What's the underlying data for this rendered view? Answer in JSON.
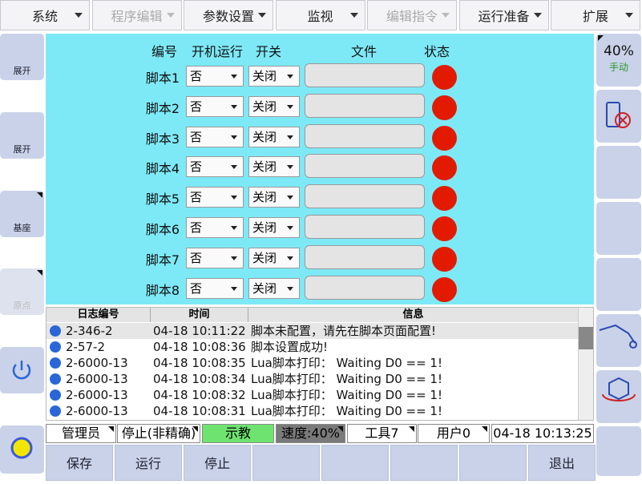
{
  "menu": [
    {
      "label": "系统"
    },
    {
      "label": "程序编辑",
      "disabled": true
    },
    {
      "label": "参数设置"
    },
    {
      "label": "监视"
    },
    {
      "label": "编辑指令",
      "disabled": true
    },
    {
      "label": "运行准备"
    },
    {
      "label": "扩展"
    }
  ],
  "left_buttons": [
    {
      "label": "展开"
    },
    {
      "label": "展开"
    },
    {
      "label": "基座"
    },
    {
      "label": "原点",
      "disabled": true
    }
  ],
  "right_panel": {
    "speed": "40%",
    "mode": "手动"
  },
  "script_table": {
    "headers": [
      "编号",
      "开机运行",
      "开关",
      "文件",
      "状态"
    ],
    "rows": [
      {
        "name": "脚本1",
        "autorun": "否",
        "switch": "关闭"
      },
      {
        "name": "脚本2",
        "autorun": "否",
        "switch": "关闭"
      },
      {
        "name": "脚本3",
        "autorun": "否",
        "switch": "关闭"
      },
      {
        "name": "脚本4",
        "autorun": "否",
        "switch": "关闭"
      },
      {
        "name": "脚本5",
        "autorun": "否",
        "switch": "关闭"
      },
      {
        "name": "脚本6",
        "autorun": "否",
        "switch": "关闭"
      },
      {
        "name": "脚本7",
        "autorun": "否",
        "switch": "关闭"
      },
      {
        "name": "脚本8",
        "autorun": "否",
        "switch": "关闭"
      }
    ]
  },
  "log": {
    "headers": [
      "日志编号",
      "时间",
      "信息"
    ],
    "rows": [
      [
        "2-346-2",
        "04-18 10:11:22",
        "脚本未配置，请先在脚本页面配置!"
      ],
      [
        "2-57-2",
        "04-18 10:08:36",
        "脚本设置成功!"
      ],
      [
        "2-6000-13",
        "04-18 10:08:35",
        "Lua脚本打印： Waiting D0 == 1!"
      ],
      [
        "2-6000-13",
        "04-18 10:08:34",
        "Lua脚本打印： Waiting D0 == 1!"
      ],
      [
        "2-6000-13",
        "04-18 10:08:32",
        "Lua脚本打印： Waiting D0 == 1!"
      ],
      [
        "2-6000-13",
        "04-18 10:08:31",
        "Lua脚本打印： Waiting D0 == 1!"
      ]
    ]
  },
  "status_bar": [
    "管理员",
    "停止(非精确)",
    "示教",
    "速度:40%",
    "工具7",
    "用户0",
    "04-18 10:13:25"
  ],
  "buttons": [
    "保存",
    "运行",
    "停止",
    "退出"
  ]
}
